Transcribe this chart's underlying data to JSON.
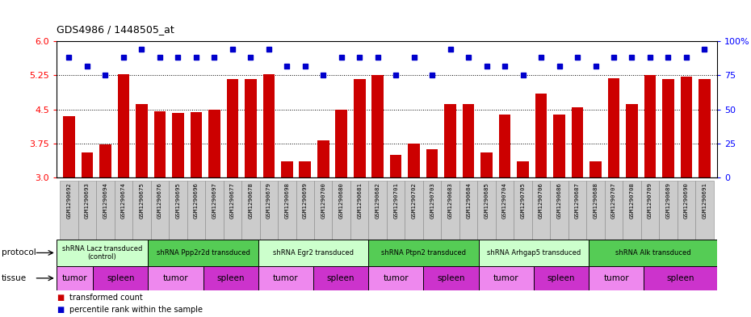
{
  "title": "GDS4986 / 1448505_at",
  "sample_ids": [
    "GSM1290692",
    "GSM1290693",
    "GSM1290694",
    "GSM1290674",
    "GSM1290675",
    "GSM1290676",
    "GSM1290695",
    "GSM1290696",
    "GSM1290697",
    "GSM1290677",
    "GSM1290678",
    "GSM1290679",
    "GSM1290698",
    "GSM1290699",
    "GSM1290700",
    "GSM1290680",
    "GSM1290681",
    "GSM1290682",
    "GSM1290701",
    "GSM1290702",
    "GSM1290703",
    "GSM1290683",
    "GSM1290684",
    "GSM1290685",
    "GSM1290704",
    "GSM1290705",
    "GSM1290706",
    "GSM1290686",
    "GSM1290687",
    "GSM1290688",
    "GSM1290707",
    "GSM1290708",
    "GSM1290709",
    "GSM1290689",
    "GSM1290690",
    "GSM1290691"
  ],
  "bar_values": [
    4.35,
    3.55,
    3.73,
    5.28,
    4.62,
    4.45,
    4.42,
    4.44,
    4.5,
    5.17,
    5.17,
    5.28,
    3.35,
    3.35,
    3.82,
    4.5,
    5.17,
    5.25,
    3.5,
    3.75,
    3.62,
    4.62,
    4.62,
    3.55,
    4.38,
    3.35,
    4.85,
    4.38,
    4.55,
    3.35,
    5.18,
    4.62,
    5.25,
    5.17,
    5.22,
    5.17
  ],
  "percentile_values": [
    88,
    82,
    75,
    88,
    94,
    88,
    88,
    88,
    88,
    94,
    88,
    94,
    82,
    82,
    75,
    88,
    88,
    88,
    75,
    88,
    75,
    94,
    88,
    82,
    82,
    75,
    88,
    82,
    88,
    82,
    88,
    88,
    88,
    88,
    88,
    94
  ],
  "bar_color": "#cc0000",
  "percentile_color": "#0000cc",
  "ylim_left": [
    3.0,
    6.0
  ],
  "yticks_left": [
    3.0,
    3.75,
    4.5,
    5.25,
    6.0
  ],
  "ylim_right": [
    0,
    100
  ],
  "yticks_right": [
    0,
    25,
    50,
    75,
    100
  ],
  "yticklabels_right": [
    "0",
    "25",
    "50",
    "75",
    "100%"
  ],
  "protocols": [
    {
      "label": "shRNA Lacz transduced\n(control)",
      "start": 0,
      "end": 5,
      "color": "#ccffcc"
    },
    {
      "label": "shRNA Ppp2r2d transduced",
      "start": 5,
      "end": 11,
      "color": "#55cc55"
    },
    {
      "label": "shRNA Egr2 transduced",
      "start": 11,
      "end": 17,
      "color": "#ccffcc"
    },
    {
      "label": "shRNA Ptpn2 transduced",
      "start": 17,
      "end": 23,
      "color": "#55cc55"
    },
    {
      "label": "shRNA Arhgap5 transduced",
      "start": 23,
      "end": 29,
      "color": "#ccffcc"
    },
    {
      "label": "shRNA Alk transduced",
      "start": 29,
      "end": 36,
      "color": "#55cc55"
    }
  ],
  "tissues": [
    {
      "label": "tumor",
      "start": 0,
      "end": 2,
      "color": "#ee88ee"
    },
    {
      "label": "spleen",
      "start": 2,
      "end": 5,
      "color": "#cc33cc"
    },
    {
      "label": "tumor",
      "start": 5,
      "end": 8,
      "color": "#ee88ee"
    },
    {
      "label": "spleen",
      "start": 8,
      "end": 11,
      "color": "#cc33cc"
    },
    {
      "label": "tumor",
      "start": 11,
      "end": 14,
      "color": "#ee88ee"
    },
    {
      "label": "spleen",
      "start": 14,
      "end": 17,
      "color": "#cc33cc"
    },
    {
      "label": "tumor",
      "start": 17,
      "end": 20,
      "color": "#ee88ee"
    },
    {
      "label": "spleen",
      "start": 20,
      "end": 23,
      "color": "#cc33cc"
    },
    {
      "label": "tumor",
      "start": 23,
      "end": 26,
      "color": "#ee88ee"
    },
    {
      "label": "spleen",
      "start": 26,
      "end": 29,
      "color": "#cc33cc"
    },
    {
      "label": "tumor",
      "start": 29,
      "end": 32,
      "color": "#ee88ee"
    },
    {
      "label": "spleen",
      "start": 32,
      "end": 36,
      "color": "#cc33cc"
    }
  ],
  "legend_items": [
    {
      "label": "transformed count",
      "color": "#cc0000"
    },
    {
      "label": "percentile rank within the sample",
      "color": "#0000cc"
    }
  ],
  "n_samples": 36
}
